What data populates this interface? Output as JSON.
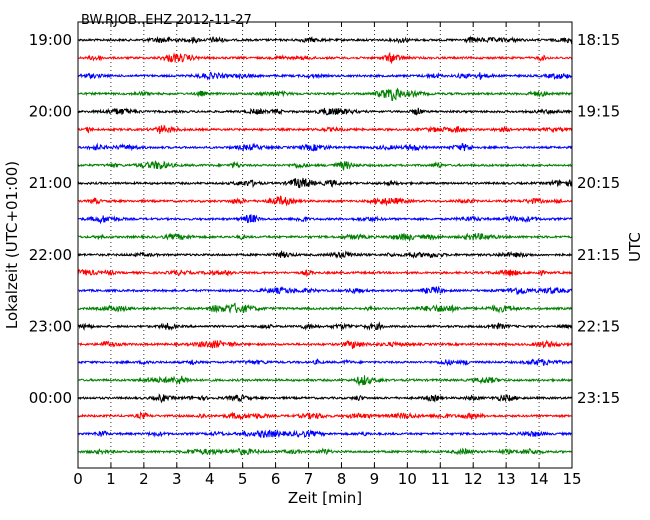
{
  "chart_data": {
    "type": "line",
    "title": "BW.RJOB..EHZ 2012-11-27",
    "xlabel": "Zeit  [min]",
    "ylabel_left": "Lokalzeit (UTC+01:00)",
    "ylabel_right": "UTC",
    "xlim": [
      0,
      15
    ],
    "x_ticks": [
      "0",
      "1",
      "2",
      "3",
      "4",
      "5",
      "6",
      "7",
      "8",
      "9",
      "10",
      "11",
      "12",
      "13",
      "14",
      "15"
    ],
    "grid": "vertical dotted",
    "trace_colors": [
      "#000000",
      "#ff0000",
      "#0000ff",
      "#008000"
    ],
    "left_hour_labels": [
      "19:00",
      "20:00",
      "21:00",
      "22:00",
      "23:00",
      "00:00"
    ],
    "right_hour_labels": [
      "18:15",
      "19:15",
      "20:15",
      "21:15",
      "22:15",
      "23:15"
    ],
    "trace_start_minutes_local": [
      "19:00",
      "19:15",
      "19:30",
      "19:45",
      "20:00",
      "20:15",
      "20:30",
      "20:45",
      "21:00",
      "21:15",
      "21:30",
      "21:45",
      "22:00",
      "22:15",
      "22:30",
      "22:45",
      "23:00",
      "23:15",
      "23:30",
      "23:45",
      "00:00",
      "00:15",
      "00:30",
      "00:45"
    ]
  }
}
